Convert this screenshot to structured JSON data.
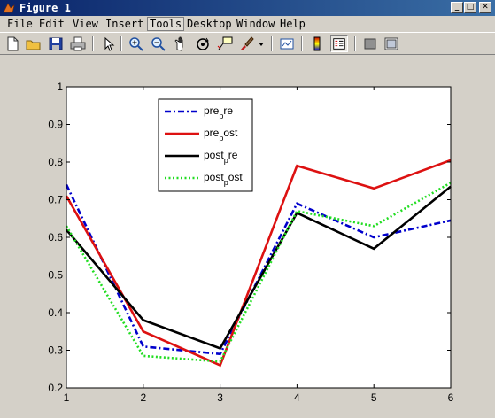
{
  "window": {
    "title": "Figure 1",
    "icons": {
      "app": "matlab-icon",
      "minimize": "minimize-icon",
      "maximize": "maximize-icon",
      "close": "close-icon"
    }
  },
  "menu": [
    {
      "label": "File"
    },
    {
      "label": "Edit"
    },
    {
      "label": "View"
    },
    {
      "label": "Insert"
    },
    {
      "label": "Tools",
      "active": true
    },
    {
      "label": "Desktop"
    },
    {
      "label": "Window"
    },
    {
      "label": "Help"
    }
  ],
  "toolbar": [
    "new-file-icon",
    "open-folder-icon",
    "save-icon",
    "print-icon",
    "select-arrow-icon",
    "zoom-in-icon",
    "zoom-out-icon",
    "pan-hand-icon",
    "rotate-3d-icon",
    "data-cursor-icon",
    "brush-icon",
    "dropdown-arrow-icon",
    "link-plot-icon",
    "colorbar-icon",
    "legend-icon",
    "hide-plot-tools-icon",
    "show-plot-tools-icon"
  ],
  "colors": {
    "pre_pre": "#0000cc",
    "pre_post": "#dd1111",
    "post_pre": "#000000",
    "post_post": "#22dd22"
  },
  "chart_data": {
    "type": "line",
    "title": "",
    "xlabel": "",
    "ylabel": "",
    "x": [
      1,
      2,
      3,
      4,
      5,
      6
    ],
    "xlim": [
      1,
      6
    ],
    "ylim": [
      0.2,
      1.0
    ],
    "xticks": [
      "1",
      "2",
      "3",
      "4",
      "5",
      "6"
    ],
    "yticks": [
      "0.2",
      "0.3",
      "0.4",
      "0.5",
      "0.6",
      "0.7",
      "0.8",
      "0.9",
      "1"
    ],
    "grid": false,
    "legend_position": "top-center",
    "series": [
      {
        "name": "pre_pre",
        "label_parts": [
          "pre",
          "p",
          "re"
        ],
        "style": "dash-dot",
        "color": "#0000cc",
        "values": [
          0.74,
          0.31,
          0.29,
          0.69,
          0.6,
          0.645
        ]
      },
      {
        "name": "pre_post",
        "label_parts": [
          "pre",
          "p",
          "ost"
        ],
        "style": "solid",
        "color": "#dd1111",
        "values": [
          0.71,
          0.35,
          0.26,
          0.79,
          0.73,
          0.805
        ]
      },
      {
        "name": "post_pre",
        "label_parts": [
          "post",
          "p",
          "re"
        ],
        "style": "solid",
        "color": "#000000",
        "values": [
          0.62,
          0.38,
          0.305,
          0.665,
          0.57,
          0.735
        ]
      },
      {
        "name": "post_post",
        "label_parts": [
          "post",
          "p",
          "ost"
        ],
        "style": "dotted",
        "color": "#22dd22",
        "values": [
          0.63,
          0.285,
          0.27,
          0.67,
          0.63,
          0.745
        ]
      }
    ]
  }
}
